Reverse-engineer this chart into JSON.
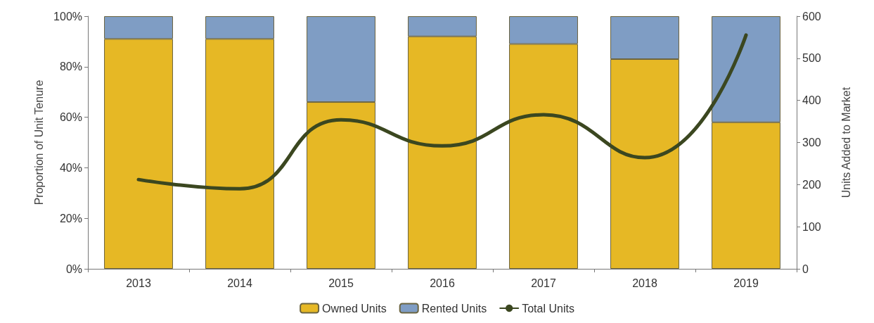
{
  "chart_data": {
    "type": "bar",
    "stacked": true,
    "ylabel": "Proportion of Unit Tenure",
    "y2label": "Units Added to Market",
    "categories": [
      "2013",
      "2014",
      "2015",
      "2016",
      "2017",
      "2018",
      "2019"
    ],
    "series": [
      {
        "name": "Owned Units",
        "color": "#e6b825",
        "values": [
          91,
          91,
          66,
          92,
          89,
          83,
          58
        ]
      },
      {
        "name": "Rented Units",
        "color": "#7f9dc4",
        "values": [
          9,
          9,
          34,
          8,
          11,
          17,
          42
        ]
      },
      {
        "name": "Total Units",
        "type": "line",
        "axis": "y2",
        "color": "#3b4720",
        "values": [
          212,
          190,
          354,
          292,
          366,
          264,
          555
        ]
      }
    ],
    "ylim": [
      0,
      100
    ],
    "yticks": [
      {
        "value": 0,
        "label": "0%"
      },
      {
        "value": 20,
        "label": "20%"
      },
      {
        "value": 40,
        "label": "40%"
      },
      {
        "value": 60,
        "label": "60%"
      },
      {
        "value": 80,
        "label": "80%"
      },
      {
        "value": 100,
        "label": "100%"
      }
    ],
    "y2lim": [
      0,
      600
    ],
    "y2ticks": [
      0,
      100,
      200,
      300,
      400,
      500,
      600
    ],
    "legend": "bottom",
    "marker": "none"
  }
}
